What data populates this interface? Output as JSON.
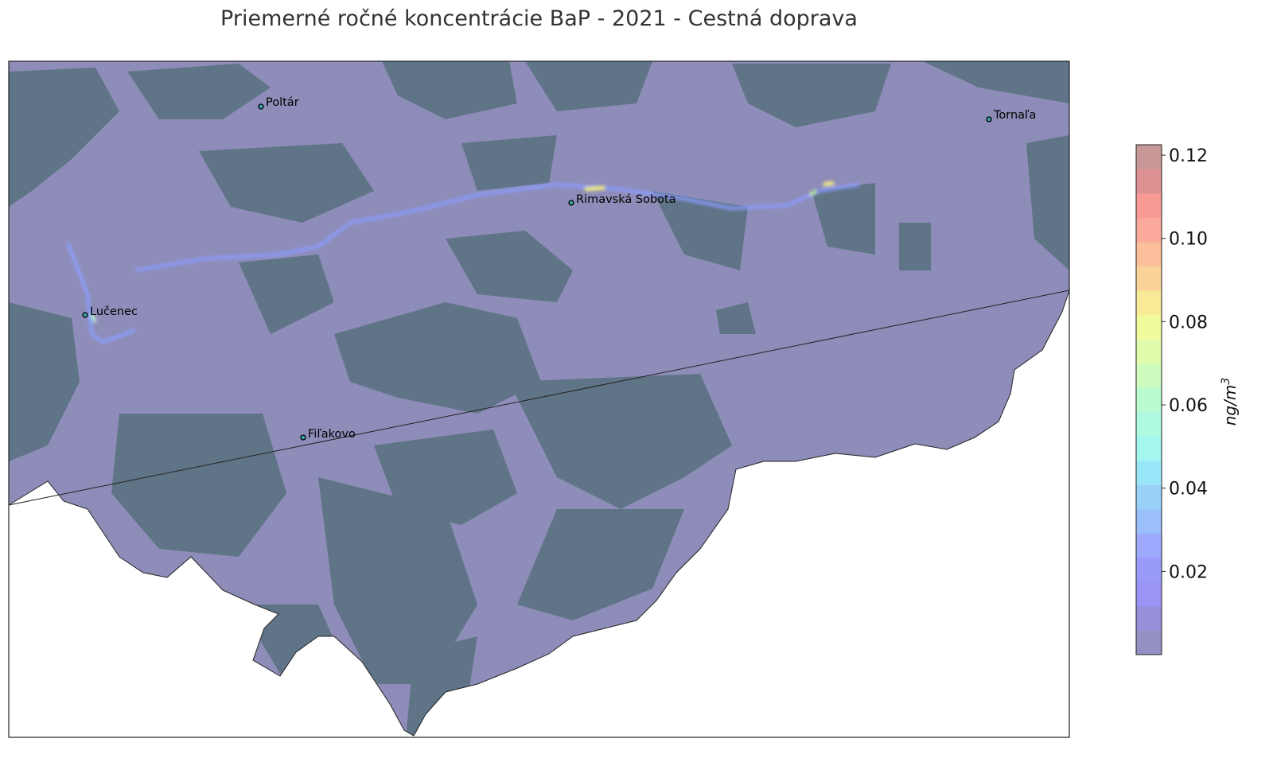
{
  "title": "Priemerné ročné koncentrácie BaP - 2021 - Cestná doprava",
  "cities": [
    {
      "name": "Poltár"
    },
    {
      "name": "Tornaľa"
    },
    {
      "name": "Rimavská Sobota"
    },
    {
      "name": "Lučenec"
    },
    {
      "name": "Fiľakovo"
    }
  ],
  "colorbar": {
    "unit_label": "ng/m3",
    "range": [
      0,
      0.1225
    ],
    "ticks": [
      "0.02",
      "0.04",
      "0.06",
      "0.08",
      "0.10",
      "0.12"
    ],
    "tick_values": [
      0.02,
      0.04,
      0.06,
      0.08,
      0.1,
      0.12
    ],
    "colors": [
      "#9391c4",
      "#9590d8",
      "#9a95f5",
      "#9a9afb",
      "#9ca9fc",
      "#9bbffc",
      "#9ad1fa",
      "#9ae6f9",
      "#a3f7ef",
      "#aef9e1",
      "#b9facf",
      "#cdfcbe",
      "#e2fcae",
      "#f1fa9c",
      "#f9ea98",
      "#fbd39a",
      "#fbbf9b",
      "#fba99a",
      "#f99a96",
      "#dd9191",
      "#c89898"
    ]
  },
  "colors": {
    "background": "#8e8cb8",
    "forest": "#5f7486",
    "outside": "#ffffff"
  }
}
